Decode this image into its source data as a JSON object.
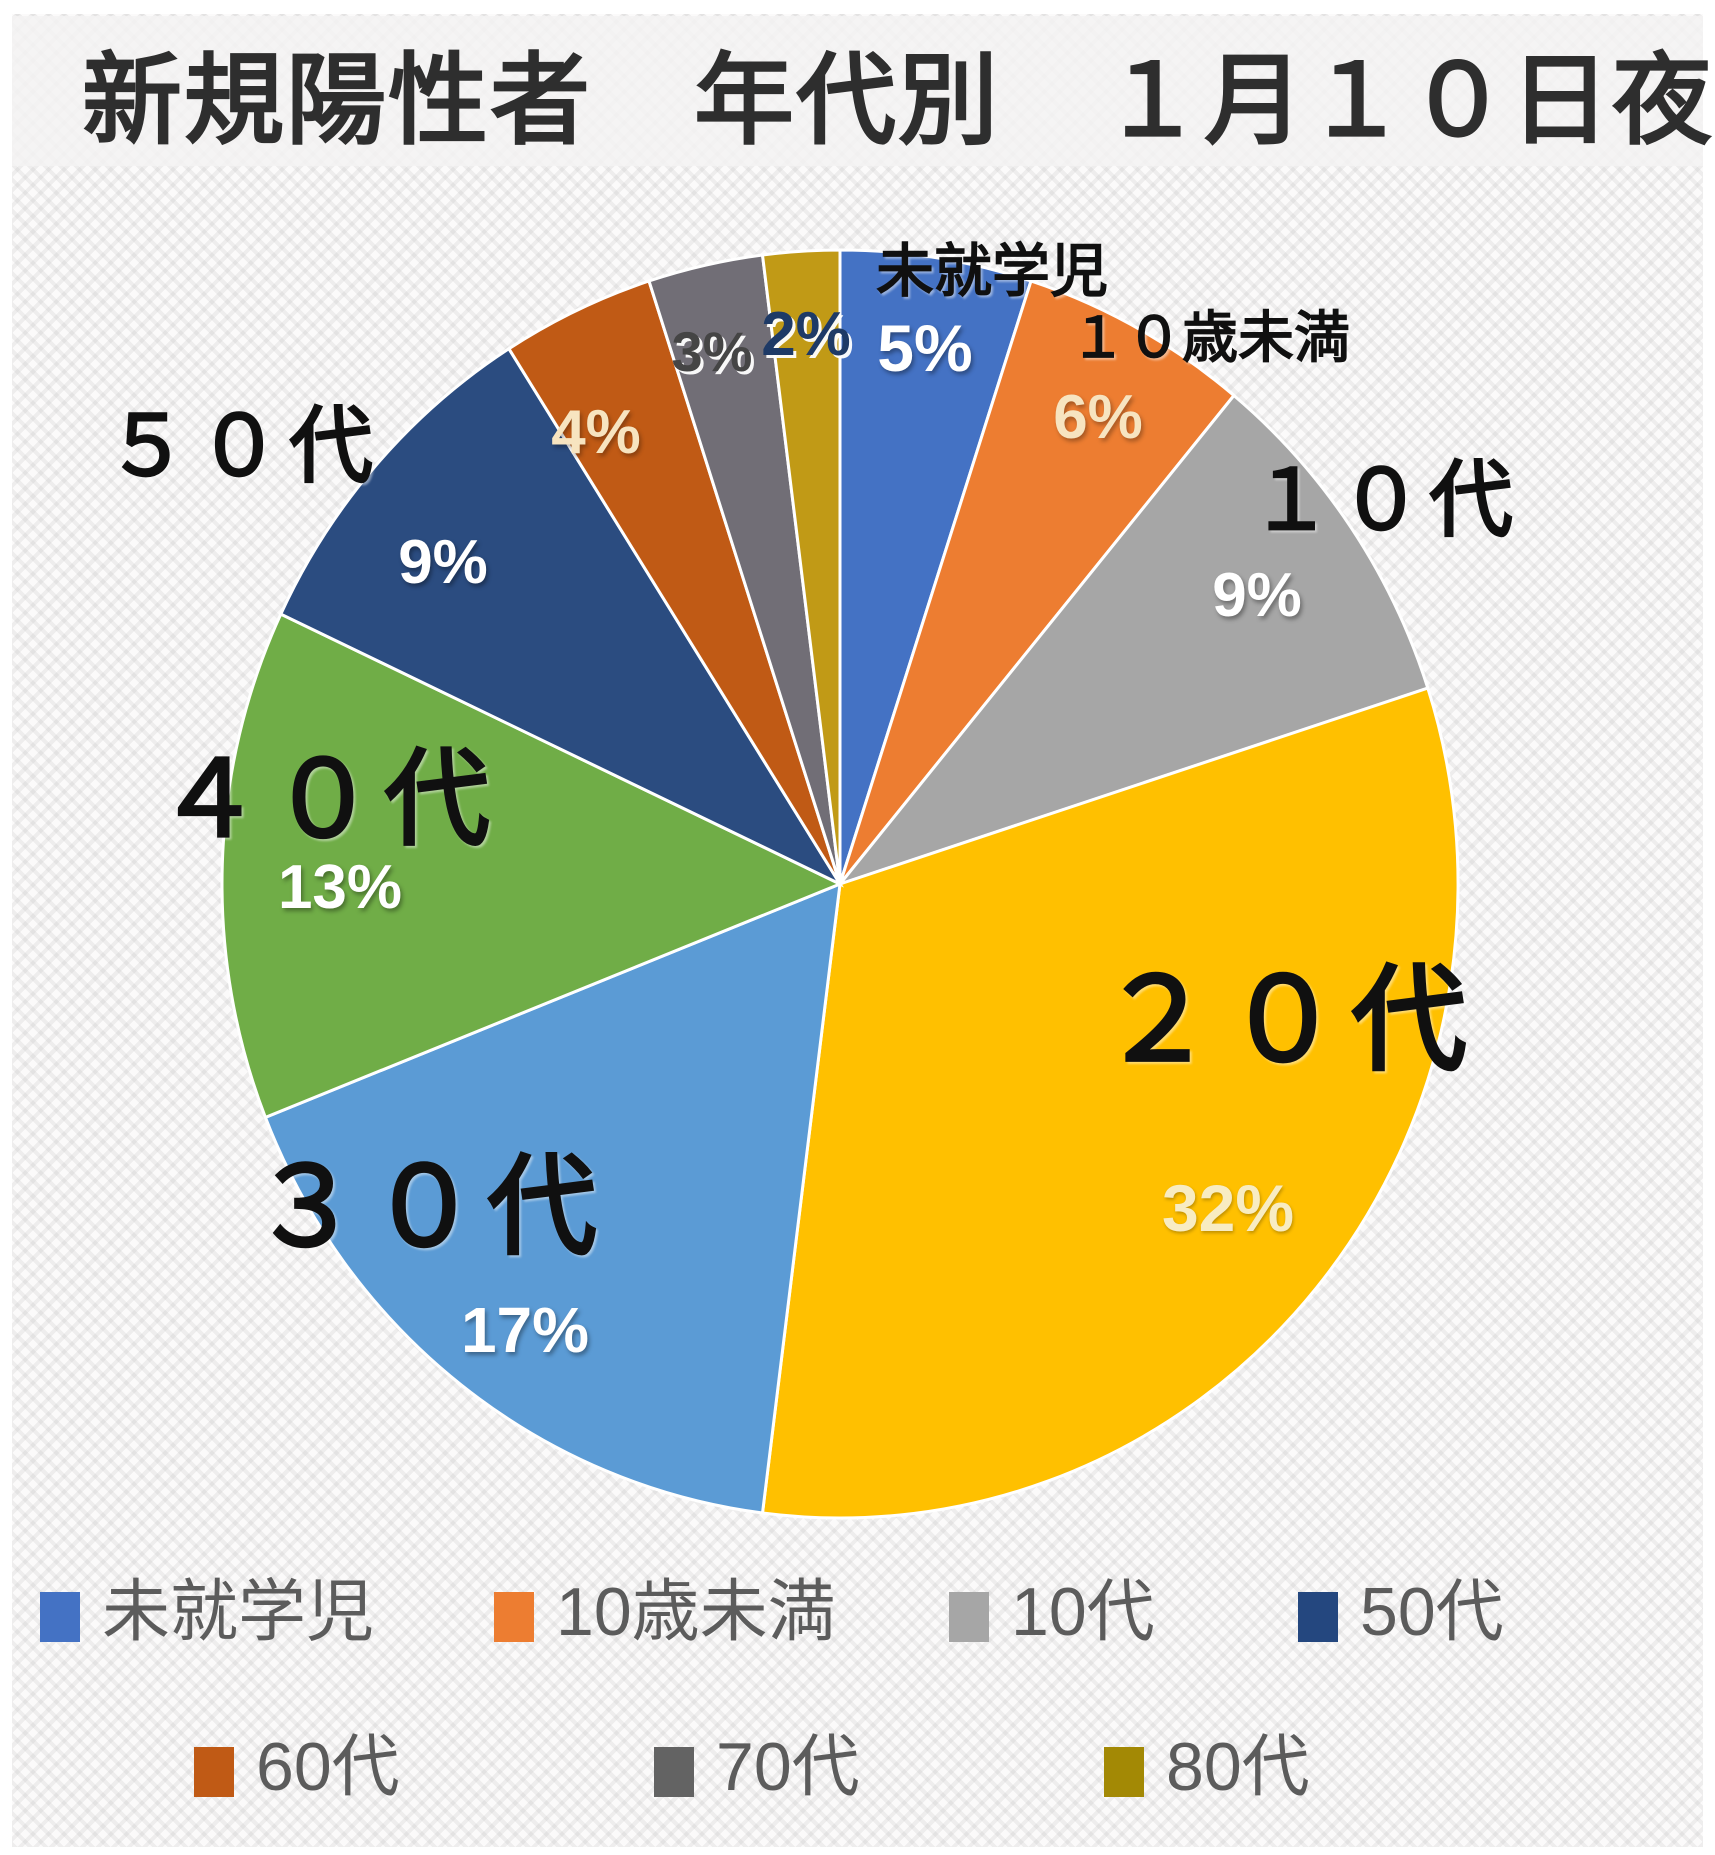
{
  "title": "新規陽性者　年代別　１月１０日夜",
  "chart_data": {
    "type": "pie",
    "title": "新規陽性者 年代別 1月10日夜",
    "unit": "%",
    "start_angle_deg": 0,
    "direction": "clockwise",
    "legend_position": "bottom",
    "slices": [
      {
        "key": "preschool",
        "name": "未就学児",
        "value": 5,
        "pct_label": "5%",
        "color": "#4472C4"
      },
      {
        "key": "under10",
        "name": "１０歳未満",
        "value": 6,
        "pct_label": "6%",
        "color": "#ED7D31"
      },
      {
        "key": "10s",
        "name": "１０代",
        "value": 9,
        "pct_label": "9%",
        "color": "#A6A6A6"
      },
      {
        "key": "20s",
        "name": "２０代",
        "value": 32,
        "pct_label": "32%",
        "color": "#FFC000"
      },
      {
        "key": "30s",
        "name": "３０代",
        "value": 17,
        "pct_label": "17%",
        "color": "#5B9BD5"
      },
      {
        "key": "40s",
        "name": "４０代",
        "value": 13,
        "pct_label": "13%",
        "color": "#70AD47"
      },
      {
        "key": "50s",
        "name": "５０代",
        "value": 9,
        "pct_label": "9%",
        "color": "#2B4C80"
      },
      {
        "key": "60s",
        "name": "６０代",
        "value": 4,
        "pct_label": "4%",
        "color": "#C05A15"
      },
      {
        "key": "70s",
        "name": "７０代",
        "value": 3,
        "pct_label": "3%",
        "color": "#716E76"
      },
      {
        "key": "80s",
        "name": "８０代",
        "value": 2,
        "pct_label": "2%",
        "color": "#C19A16"
      }
    ]
  },
  "legend": {
    "items": [
      {
        "label": "未就学児",
        "color": "#4472C4"
      },
      {
        "label": "10歳未満",
        "color": "#ED7D31"
      },
      {
        "label": "10代",
        "color": "#A6A6A6"
      },
      {
        "label": "50代",
        "color": "#24477F"
      },
      {
        "label": "60代",
        "color": "#C05A15"
      },
      {
        "label": "70代",
        "color": "#636363"
      },
      {
        "label": "80代",
        "color": "#A38905"
      }
    ]
  }
}
